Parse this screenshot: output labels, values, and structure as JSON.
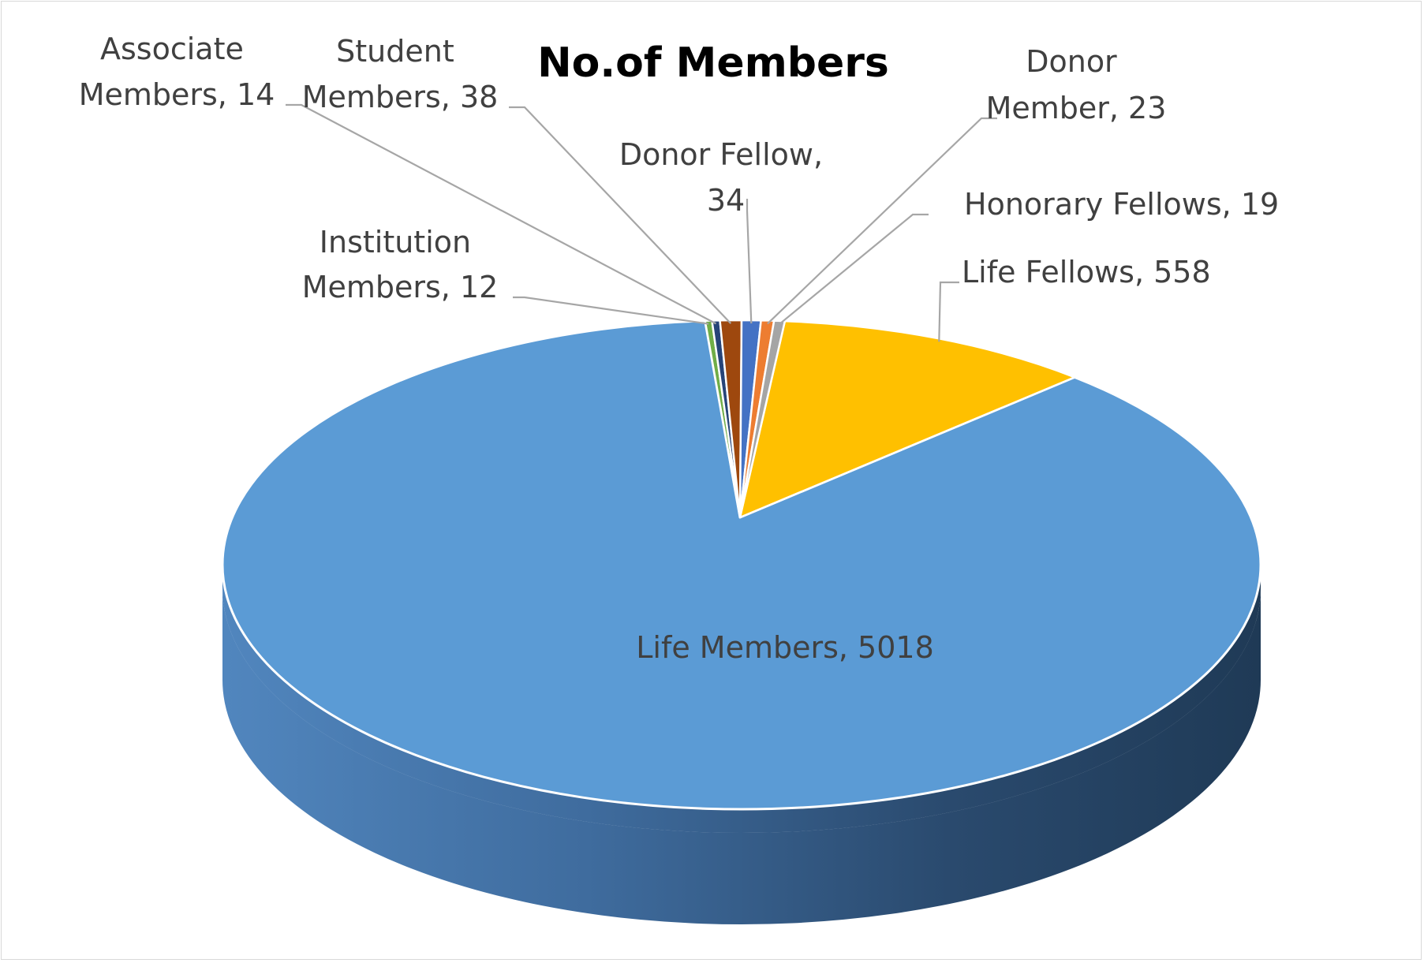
{
  "chart_data": {
    "type": "pie",
    "style": "3d",
    "title": "No.of Members",
    "slices": [
      {
        "label": "Life Members",
        "value": 5018,
        "color": "#5B9BD5"
      },
      {
        "label": "Institution Members",
        "value": 12,
        "color": "#70AD47"
      },
      {
        "label": "Associate Members",
        "value": 14,
        "color": "#264478"
      },
      {
        "label": "Student Members",
        "value": 38,
        "color": "#9E480E"
      },
      {
        "label": "Donor Fellow",
        "value": 34,
        "color": "#4472C4"
      },
      {
        "label": "Donor Member",
        "value": 23,
        "color": "#ED7D31"
      },
      {
        "label": "Honorary Fellows",
        "value": 19,
        "color": "#A5A5A5"
      },
      {
        "label": "Life Fellows",
        "value": 558,
        "color": "#FFC000"
      }
    ],
    "data_labels": {
      "life_members": [
        "Life Members, 5018"
      ],
      "institution_members": [
        "Institution",
        "Members, 12"
      ],
      "associate_members": [
        "Associate",
        "Members, 14"
      ],
      "student_members": [
        "Student",
        "Members, 38"
      ],
      "donor_fellow": [
        "Donor Fellow,",
        "34"
      ],
      "donor_member": [
        "Donor",
        "Member, 23"
      ],
      "honorary_fellows": [
        "Honorary Fellows, 19"
      ],
      "life_fellows": [
        "Life Fellows, 558"
      ]
    },
    "legend": "none",
    "colors": {
      "leader_line": "#A6A6A6",
      "label_text": "#404040",
      "title_text": "#000000",
      "border": "#D9D9D9"
    }
  }
}
